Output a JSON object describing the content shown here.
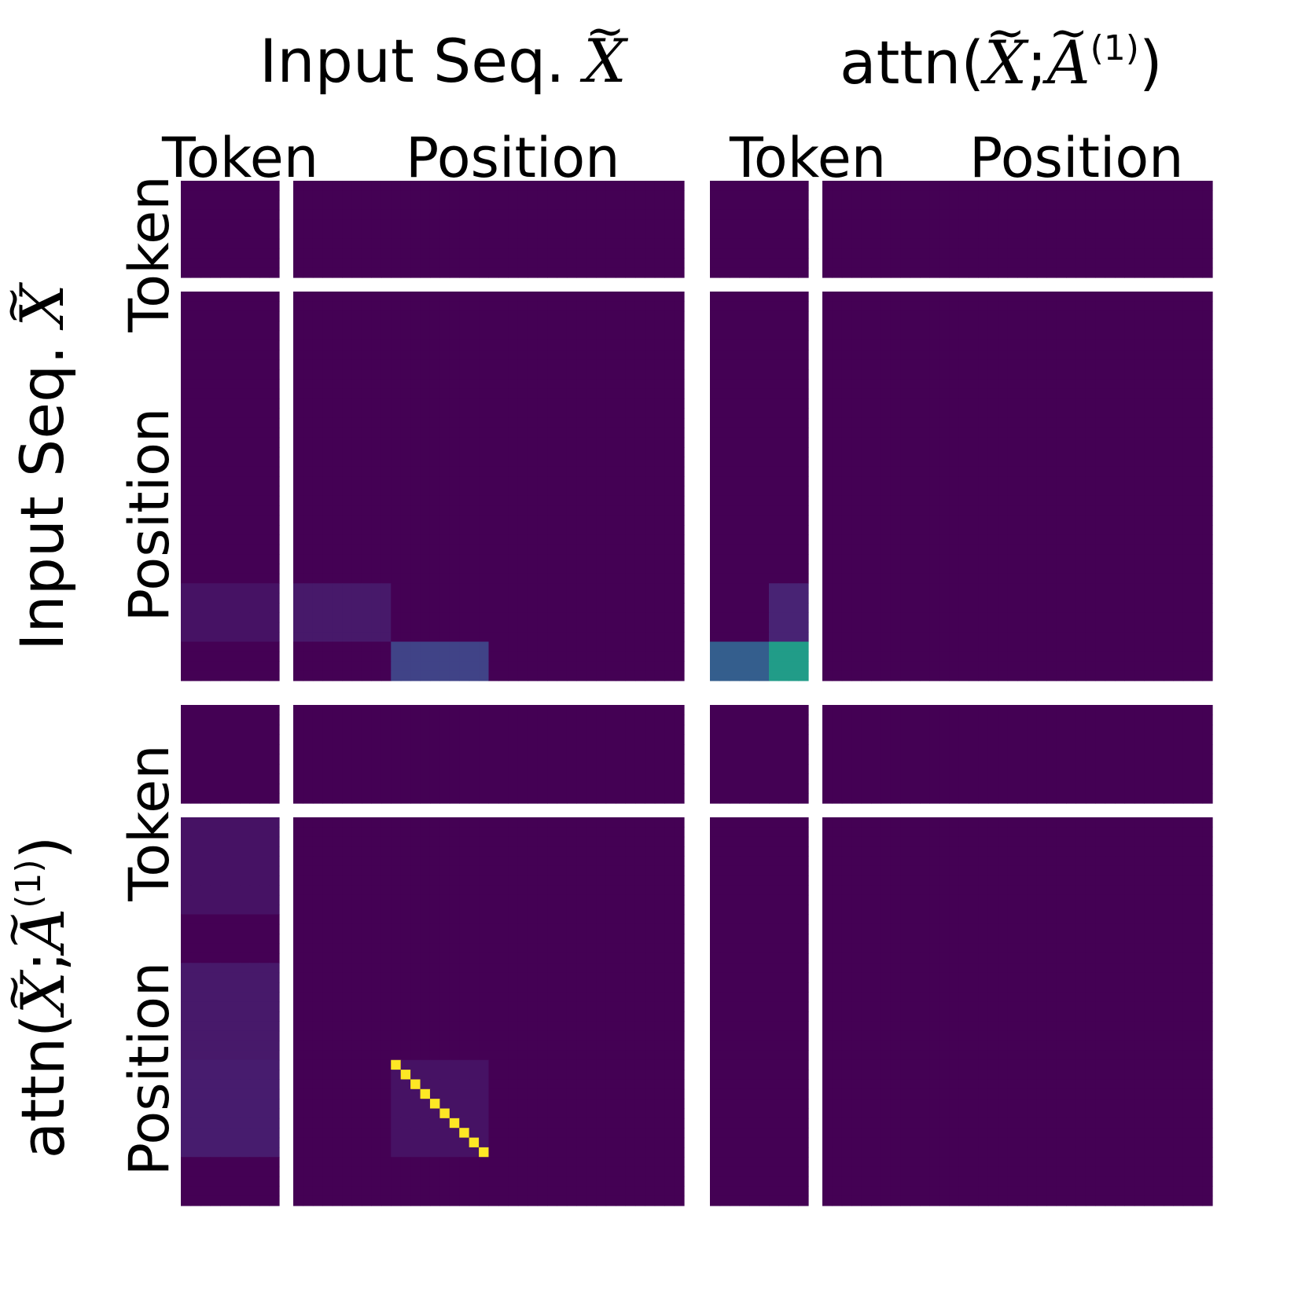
{
  "chart_data": {
    "type": "heatmap",
    "colormap": "viridis",
    "title_col": "Input Seq.",
    "title_col2": "attn(",
    "symbol_X": "X",
    "symbol_A": "A",
    "superscript": "(1)",
    "sep": ";",
    "close": ")",
    "block_labels": [
      "Token",
      "Position"
    ],
    "grid": false,
    "size": 50,
    "token_dim": 10,
    "diagonal": {
      "row_start": 35,
      "col_start": 20,
      "length": 10,
      "value": 1.0
    },
    "blocks": [
      {
        "rows": [
          0,
          10
        ],
        "cols": [
          0,
          50
        ],
        "value": 0.0
      },
      {
        "rows": [
          10,
          40
        ],
        "cols": [
          0,
          50
        ],
        "value": 0.0
      },
      {
        "rows": [
          40,
          46
        ],
        "cols": [
          0,
          10
        ],
        "value": 0.05
      },
      {
        "rows": [
          40,
          46
        ],
        "cols": [
          10,
          20
        ],
        "value": 0.07
      },
      {
        "rows": [
          46,
          50
        ],
        "cols": [
          20,
          30
        ],
        "value": 0.2
      },
      {
        "rows": [
          46,
          50
        ],
        "cols": [
          50,
          56
        ],
        "value": 0.3
      },
      {
        "rows": [
          46,
          50
        ],
        "cols": [
          56,
          60
        ],
        "value": 0.55
      },
      {
        "rows": [
          40,
          46
        ],
        "cols": [
          56,
          60
        ],
        "value": 0.1
      },
      {
        "rows": [
          60,
          70
        ],
        "cols": [
          0,
          10
        ],
        "value": 0.05
      },
      {
        "rows": [
          75,
          85
        ],
        "cols": [
          0,
          10
        ],
        "value": 0.07
      },
      {
        "rows": [
          85,
          95
        ],
        "cols": [
          0,
          10
        ],
        "value": 0.08
      },
      {
        "rows": [
          85,
          95
        ],
        "cols": [
          20,
          30
        ],
        "value": 0.05
      }
    ]
  }
}
